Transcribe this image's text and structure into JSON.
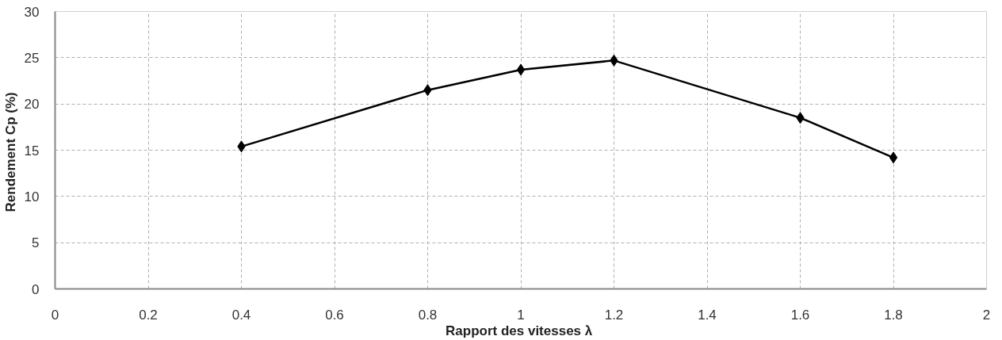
{
  "chart_data": {
    "type": "line",
    "xlabel": "Rapport des vitesses  λ",
    "ylabel": "Rendement  Cp (%)",
    "x": [
      0.4,
      0.8,
      1.0,
      1.2,
      1.6,
      1.8
    ],
    "series": [
      {
        "color": "#000000",
        "values": [
          15.4,
          21.5,
          23.7,
          24.7,
          18.5,
          14.2
        ]
      }
    ],
    "xlim": [
      0,
      2
    ],
    "ylim": [
      0,
      30
    ],
    "xticks": [
      0,
      {
        "value": 0.2,
        "label": "0.2"
      },
      {
        "value": 0.4,
        "label": "0.4"
      },
      {
        "value": 0.6,
        "label": "0.6"
      },
      {
        "value": 0.8,
        "label": "0.8"
      },
      1,
      {
        "value": 1.2,
        "label": "1.2"
      },
      {
        "value": 1.4,
        "label": "1.4"
      },
      {
        "value": 1.6,
        "label": "1.6"
      },
      {
        "value": 1.8,
        "label": "1.8"
      },
      2
    ],
    "yticks": [
      0,
      5,
      10,
      15,
      20,
      25,
      30
    ],
    "grid": true,
    "marker": "diamond",
    "line_style": "solid"
  }
}
